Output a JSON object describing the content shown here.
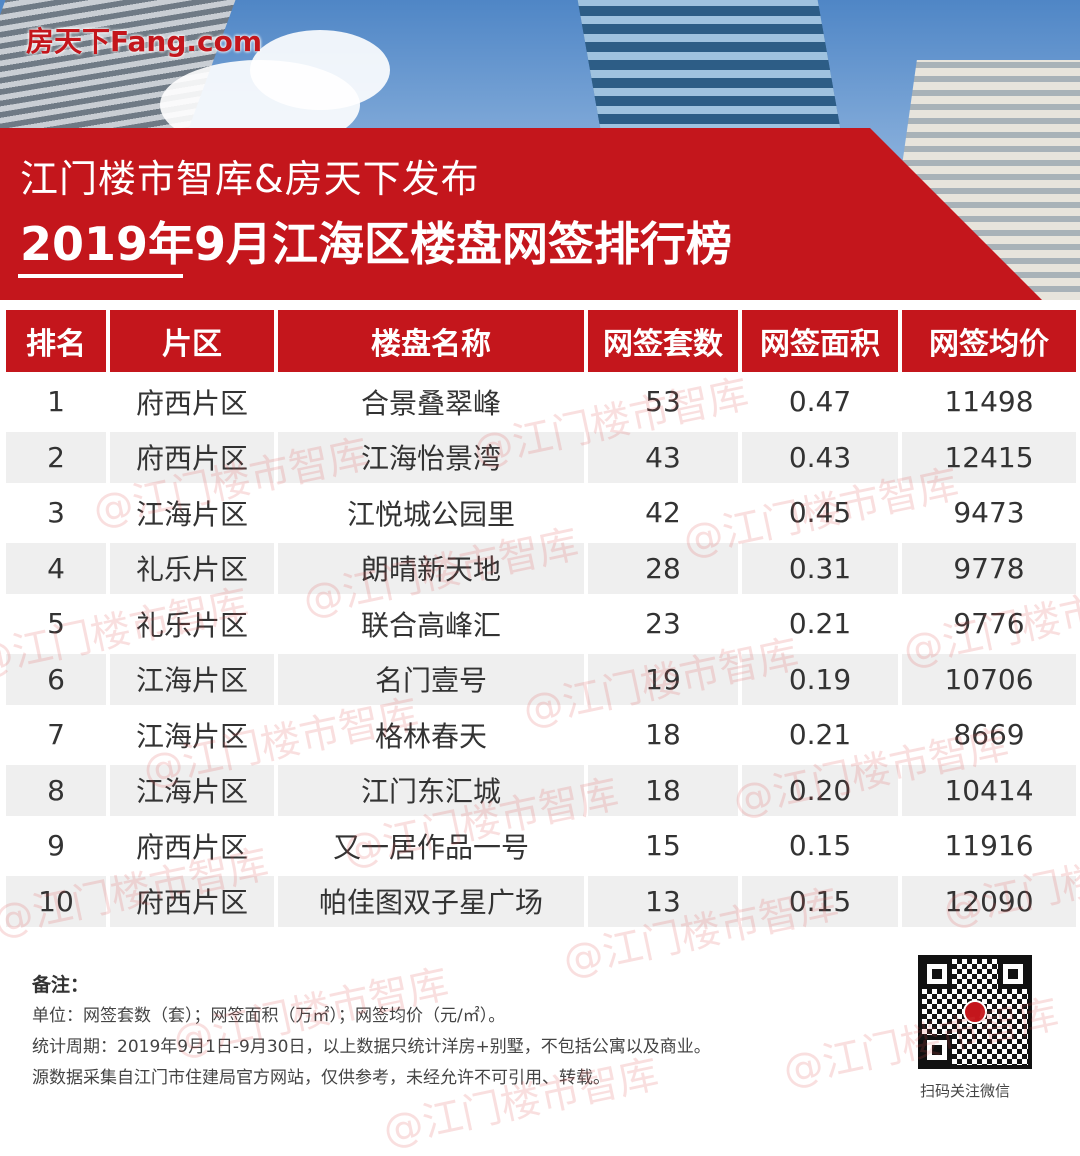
{
  "logo": "房天下Fang.com",
  "subtitle": "江门楼市智库&房天下发布",
  "title": "2019年9月江海区楼盘网签排行榜",
  "colors": {
    "accent": "#c4161c",
    "row_alt": "#efefef"
  },
  "table": {
    "headers": [
      "排名",
      "片区",
      "楼盘名称",
      "网签套数",
      "网签面积",
      "网签均价"
    ],
    "rows": [
      [
        "1",
        "府西片区",
        "合景叠翠峰",
        "53",
        "0.47",
        "11498"
      ],
      [
        "2",
        "府西片区",
        "江海怡景湾",
        "43",
        "0.43",
        "12415"
      ],
      [
        "3",
        "江海片区",
        "江悦城公园里",
        "42",
        "0.45",
        "9473"
      ],
      [
        "4",
        "礼乐片区",
        "朗晴新天地",
        "28",
        "0.31",
        "9778"
      ],
      [
        "5",
        "礼乐片区",
        "联合高峰汇",
        "23",
        "0.21",
        "9776"
      ],
      [
        "6",
        "江海片区",
        "名门壹号",
        "19",
        "0.19",
        "10706"
      ],
      [
        "7",
        "江海片区",
        "格林春天",
        "18",
        "0.21",
        "8669"
      ],
      [
        "8",
        "江海片区",
        "江门东汇城",
        "18",
        "0.20",
        "10414"
      ],
      [
        "9",
        "府西片区",
        "又一居作品一号",
        "15",
        "0.15",
        "11916"
      ],
      [
        "10",
        "府西片区",
        "帕佳图双子星广场",
        "13",
        "0.15",
        "12090"
      ]
    ]
  },
  "watermark": "@江门楼市智库",
  "notes": {
    "heading": "备注：",
    "lines": [
      "单位：网签套数（套）；网签面积（万㎡）；网签均价（元/㎡）。",
      "统计周期：2019年9月1日-9月30日，以上数据只统计洋房+别墅，不包括公寓以及商业。",
      "源数据采集自江门市住建局官方网站，仅供参考，未经允许不可引用、转载。"
    ]
  },
  "qr_label": "扫码关注微信"
}
